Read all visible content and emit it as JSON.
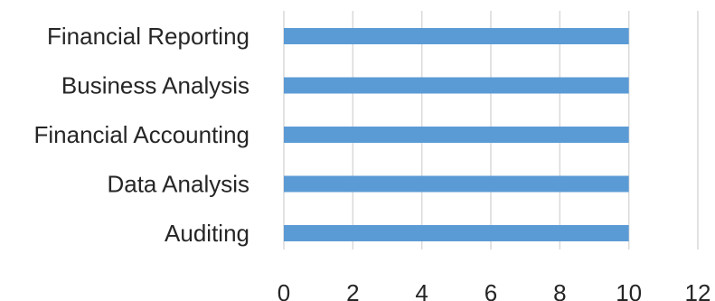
{
  "chart_data": {
    "type": "bar",
    "orientation": "horizontal",
    "categories": [
      "Financial Reporting",
      "Business Analysis",
      "Financial Accounting",
      "Data Analysis",
      "Auditing"
    ],
    "values": [
      10,
      10,
      10,
      10,
      10
    ],
    "xlim": [
      0,
      12
    ],
    "xticks": [
      0,
      2,
      4,
      6,
      8,
      10,
      12
    ],
    "xtick_labels": [
      "0",
      "2",
      "4",
      "6",
      "8",
      "10",
      "12"
    ],
    "title": "",
    "xlabel": "",
    "ylabel": "",
    "grid": "vertical",
    "legend": "none",
    "bar_color": "#5b9bd5",
    "grid_color": "#d9d9d9",
    "text_color": "#262626"
  }
}
